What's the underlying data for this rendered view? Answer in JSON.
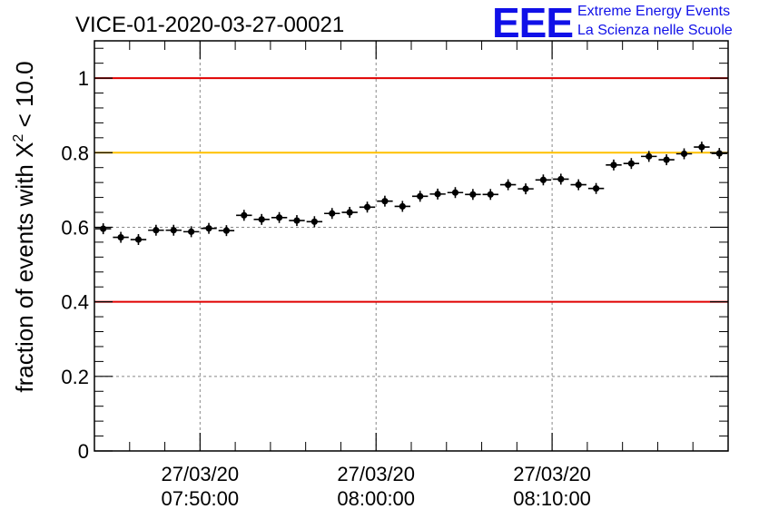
{
  "logo": {
    "mark": "EEE",
    "line1": "Extreme Energy Events",
    "line2": "La Scienza nelle Scuole"
  },
  "chart_data": {
    "type": "scatter",
    "title": "VICE-01-2020-03-27-00021",
    "ylabel_main": "fraction of events with X",
    "ylabel_sup": "2",
    "ylabel_tail": " < 10.0",
    "ylim": [
      0,
      1.1
    ],
    "yticks": [
      {
        "value": 0,
        "label": "0"
      },
      {
        "value": 0.2,
        "label": "0.2"
      },
      {
        "value": 0.4,
        "label": "0.4"
      },
      {
        "value": 0.6,
        "label": "0.6"
      },
      {
        "value": 0.8,
        "label": "0.8"
      },
      {
        "value": 1,
        "label": "1"
      }
    ],
    "xlim": [
      "07:44:00",
      "08:20:00"
    ],
    "xticks": [
      {
        "time": "07:50:00",
        "date": "27/03/20"
      },
      {
        "time": "08:00:00",
        "date": "27/03/20"
      },
      {
        "time": "08:10:00",
        "date": "27/03/20"
      }
    ],
    "grid": true,
    "reference_lines": [
      {
        "y": 1.0,
        "color": "#e00000"
      },
      {
        "y": 0.8,
        "color": "#ffc000"
      },
      {
        "y": 0.4,
        "color": "#e00000"
      }
    ],
    "marker_color": "#000000",
    "bin_width": "1 min",
    "points": [
      {
        "x": "07:44:30",
        "y": 0.596
      },
      {
        "x": "07:45:30",
        "y": 0.573
      },
      {
        "x": "07:46:30",
        "y": 0.567
      },
      {
        "x": "07:47:30",
        "y": 0.592
      },
      {
        "x": "07:48:30",
        "y": 0.592
      },
      {
        "x": "07:49:30",
        "y": 0.588
      },
      {
        "x": "07:50:30",
        "y": 0.597
      },
      {
        "x": "07:51:30",
        "y": 0.591
      },
      {
        "x": "07:52:30",
        "y": 0.632
      },
      {
        "x": "07:53:30",
        "y": 0.621
      },
      {
        "x": "07:54:30",
        "y": 0.626
      },
      {
        "x": "07:55:30",
        "y": 0.618
      },
      {
        "x": "07:56:30",
        "y": 0.615
      },
      {
        "x": "07:57:30",
        "y": 0.637
      },
      {
        "x": "07:58:30",
        "y": 0.64
      },
      {
        "x": "07:59:30",
        "y": 0.654
      },
      {
        "x": "08:00:30",
        "y": 0.67
      },
      {
        "x": "08:01:30",
        "y": 0.656
      },
      {
        "x": "08:02:30",
        "y": 0.683
      },
      {
        "x": "08:03:30",
        "y": 0.689
      },
      {
        "x": "08:04:30",
        "y": 0.693
      },
      {
        "x": "08:05:30",
        "y": 0.688
      },
      {
        "x": "08:06:30",
        "y": 0.688
      },
      {
        "x": "08:07:30",
        "y": 0.714
      },
      {
        "x": "08:08:30",
        "y": 0.703
      },
      {
        "x": "08:09:30",
        "y": 0.727
      },
      {
        "x": "08:10:30",
        "y": 0.729
      },
      {
        "x": "08:11:30",
        "y": 0.714
      },
      {
        "x": "08:12:30",
        "y": 0.704
      },
      {
        "x": "08:13:30",
        "y": 0.767
      },
      {
        "x": "08:14:30",
        "y": 0.771
      },
      {
        "x": "08:15:30",
        "y": 0.79
      },
      {
        "x": "08:16:30",
        "y": 0.781
      },
      {
        "x": "08:17:30",
        "y": 0.797
      },
      {
        "x": "08:18:30",
        "y": 0.815
      },
      {
        "x": "08:19:30",
        "y": 0.798
      }
    ]
  }
}
